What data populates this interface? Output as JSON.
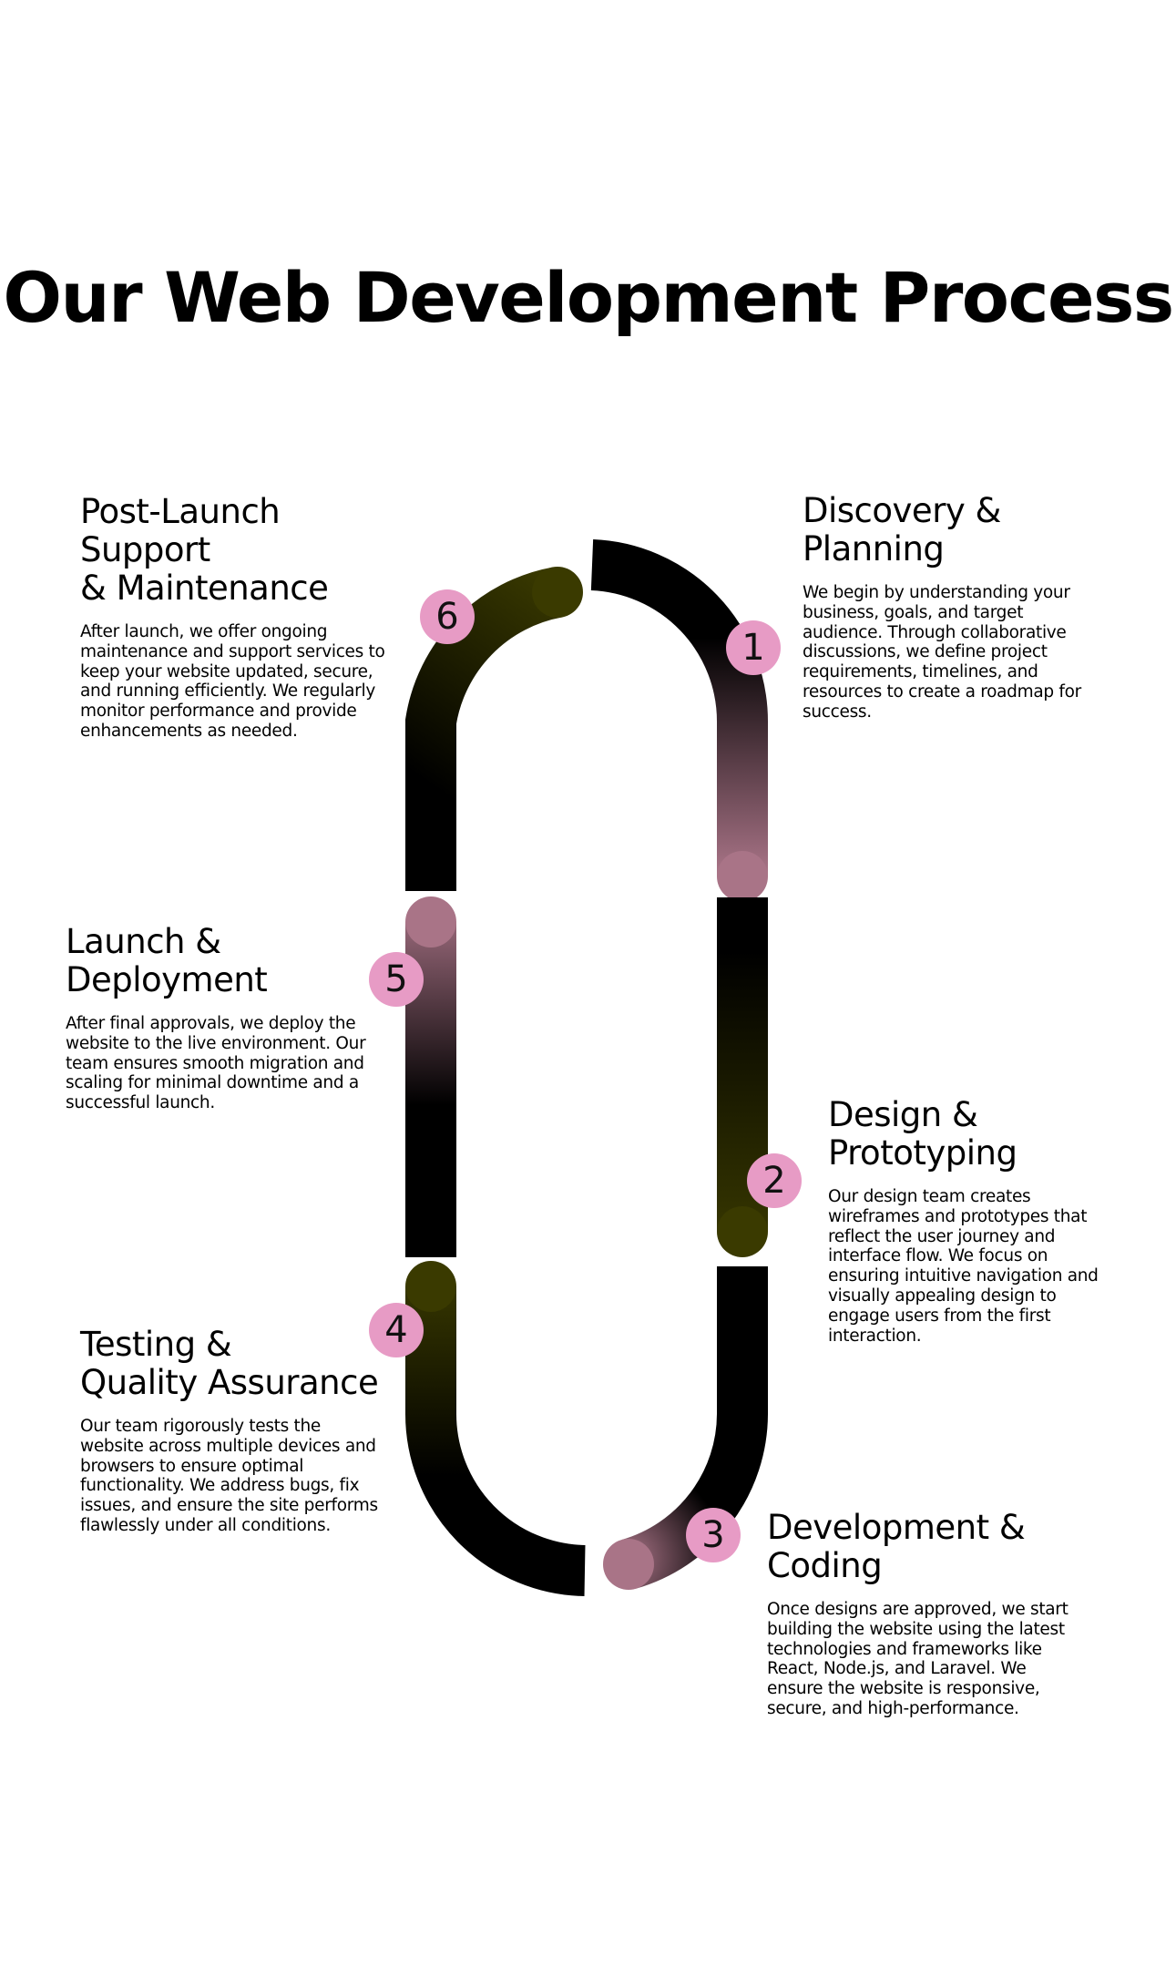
{
  "title": "Our Web Development Process",
  "colors": {
    "badge": "#e79bc5",
    "track": "#000000",
    "olive": "#3a3a00",
    "mauve": "#a97487"
  },
  "steps": [
    {
      "number": "1",
      "heading_line1": "Discovery &",
      "heading_line2": "Planning",
      "text": "We begin by understanding your business, goals, and target audience. Through collaborative discussions, we define project requirements, timelines, and resources to create a roadmap for success."
    },
    {
      "number": "2",
      "heading_line1": "Design &",
      "heading_line2": "Prototyping",
      "text": "Our design team creates wireframes and prototypes that reflect the user journey and interface flow. We focus on ensuring intuitive navigation and visually appealing design to engage users from the first interaction."
    },
    {
      "number": "3",
      "heading_line1": "Development &",
      "heading_line2": "Coding",
      "text": "Once designs are approved, we start building the website using the latest technologies and frameworks like React, Node.js, and Laravel. We ensure the website is responsive, secure, and high-performance."
    },
    {
      "number": "4",
      "heading_line1": "Testing &",
      "heading_line2": "Quality Assurance",
      "text": "Our team rigorously tests the website across multiple devices and browsers to ensure optimal functionality. We address bugs, fix issues, and ensure the site performs flawlessly under all conditions."
    },
    {
      "number": "5",
      "heading_line1": "Launch &",
      "heading_line2": "Deployment",
      "text": "After final approvals, we deploy the website to the live environment. Our team ensures smooth migration and scaling for minimal downtime and a successful launch."
    },
    {
      "number": "6",
      "heading_line1": "Post-Launch Support",
      "heading_line2": "& Maintenance",
      "text": "After launch, we offer ongoing maintenance and support services to keep your website updated, secure, and running efficiently. We regularly monitor performance and provide enhancements as needed."
    }
  ]
}
